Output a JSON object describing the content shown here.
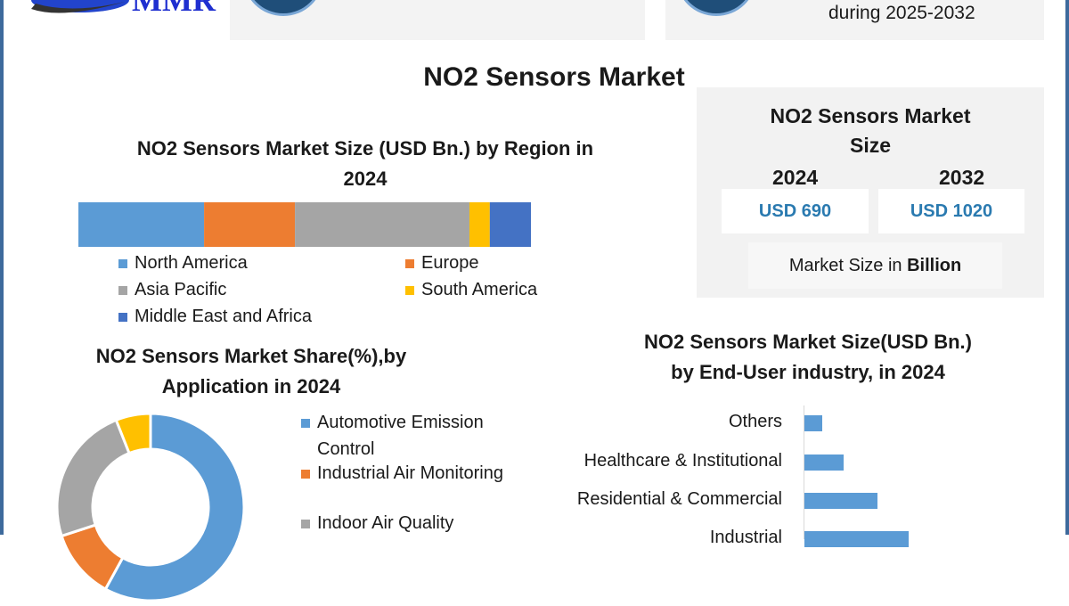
{
  "logo": {
    "text": "MMR"
  },
  "top_cards": [
    {
      "text": ""
    },
    {
      "text": "during 2025-2032"
    }
  ],
  "main_title": "NO2 Sensors Market",
  "market_size": {
    "title_line1": "NO2 Sensors Market",
    "title_line2": "Size",
    "years": [
      {
        "year": "2024",
        "value": "USD 690"
      },
      {
        "year": "2032",
        "value": "USD 1020"
      }
    ],
    "unit_prefix": "Market Size in ",
    "unit_bold": "Billion"
  },
  "colors": {
    "blue": "#5b9bd5",
    "orange": "#ed7d31",
    "gray": "#a5a5a5",
    "yellow": "#ffc000",
    "dark_blue": "#4472c4",
    "frame": "#3d6a9c"
  },
  "chart_data": [
    {
      "type": "bar",
      "stacked": true,
      "orientation": "horizontal",
      "title_line1": "NO2 Sensors Market Size (USD Bn.) by Region in",
      "title_line2": "2024",
      "series": [
        {
          "name": "North America",
          "values": [
            27.8
          ],
          "color": "#5b9bd5"
        },
        {
          "name": "Europe",
          "values": [
            20.1
          ],
          "color": "#ed7d31"
        },
        {
          "name": "Asia Pacific",
          "values": [
            38.6
          ],
          "color": "#a5a5a5"
        },
        {
          "name": "South America",
          "values": [
            4.5
          ],
          "color": "#ffc000"
        },
        {
          "name": "Middle East and Africa",
          "values": [
            9.1
          ],
          "color": "#4472c4"
        }
      ],
      "legend": "bottom"
    },
    {
      "type": "pie",
      "donut": true,
      "title_line1": "NO2 Sensors Market Share(%),by",
      "title_line2": "Application in 2024",
      "slices": [
        {
          "name": "Automotive Emission Control",
          "legend_lines": [
            "Automotive Emission",
            "Control"
          ],
          "value": 58,
          "color": "#5b9bd5"
        },
        {
          "name": "Industrial Air Monitoring",
          "legend_lines": [
            "Industrial Air Monitoring"
          ],
          "value": 12,
          "color": "#ed7d31"
        },
        {
          "name": "Indoor Air Quality",
          "legend_lines": [
            "Indoor Air Quality"
          ],
          "value": 24,
          "color": "#a5a5a5"
        },
        {
          "name": "",
          "legend_lines": [],
          "value": 6,
          "color": "#ffc000"
        }
      ],
      "legend": "right"
    },
    {
      "type": "bar",
      "orientation": "horizontal",
      "title_line1": "NO2 Sensors Market Size(USD Bn.)",
      "title_line2": "by End-User industry, in 2024",
      "categories": [
        "Others",
        "Healthcare & Institutional",
        "Residential & Commercial",
        "Industrial"
      ],
      "values": [
        52,
        115,
        215,
        308
      ],
      "xlim": [
        0,
        700
      ],
      "color": "#5b9bd5"
    }
  ]
}
